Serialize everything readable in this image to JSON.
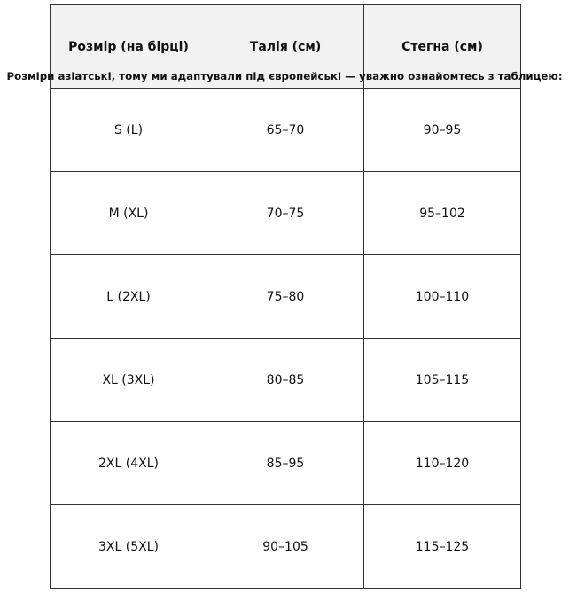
{
  "caption": "Розміри азіатські, тому ми адаптували під європейські — уважно ознайомтесь з таблицею:",
  "table": {
    "headers": [
      "Розмір (на бірці)",
      "Талія (см)",
      "Стегна (см)"
    ],
    "rows": [
      [
        "S (L)",
        "65–70",
        "90–95"
      ],
      [
        "M (XL)",
        "70–75",
        "95–102"
      ],
      [
        "L (2XL)",
        "75–80",
        "100–110"
      ],
      [
        "XL (3XL)",
        "80–85",
        "105–115"
      ],
      [
        "2XL (4XL)",
        "85–95",
        "110–120"
      ],
      [
        "3XL (5XL)",
        "90–105",
        "115–125"
      ]
    ]
  },
  "colors": {
    "header_bg": "#f2f2f2",
    "border": "#333333"
  }
}
